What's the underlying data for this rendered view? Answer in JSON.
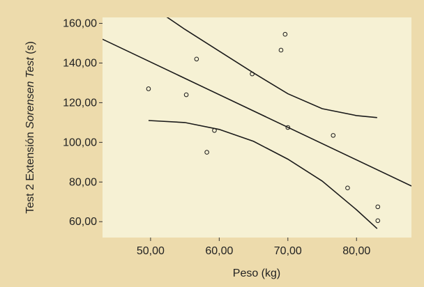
{
  "colors": {
    "page_background": "#eddbac",
    "plot_background": "#f6f1d4",
    "line": "#1a1a1a"
  },
  "chart_data": {
    "type": "scatter",
    "xlabel": "Peso (kg)",
    "ylabel_parts": [
      "Test 2 Extensión ",
      "Sorensen",
      " ",
      "Test",
      " (s)"
    ],
    "xlim": [
      43,
      88
    ],
    "ylim": [
      52,
      163
    ],
    "x_ticks": [
      50,
      60,
      70,
      80
    ],
    "x_tick_labels": [
      "50,00",
      "60,00",
      "70,00",
      "80,00"
    ],
    "y_ticks": [
      60,
      80,
      100,
      120,
      140,
      160
    ],
    "y_tick_labels": [
      "60,00",
      "80,00",
      "100,00",
      "120,00",
      "140,00",
      "160,00"
    ],
    "grid": false,
    "points": [
      {
        "x": 49.7,
        "y": 127
      },
      {
        "x": 55.2,
        "y": 124
      },
      {
        "x": 56.7,
        "y": 142
      },
      {
        "x": 58.2,
        "y": 95
      },
      {
        "x": 59.3,
        "y": 106
      },
      {
        "x": 64.8,
        "y": 134.5
      },
      {
        "x": 69.0,
        "y": 146.5
      },
      {
        "x": 69.6,
        "y": 154.5
      },
      {
        "x": 70.0,
        "y": 107.5
      },
      {
        "x": 76.6,
        "y": 103.5
      },
      {
        "x": 78.7,
        "y": 77
      },
      {
        "x": 83.1,
        "y": 67.5
      },
      {
        "x": 83.1,
        "y": 60.5
      }
    ],
    "regression_line": [
      {
        "x": 43,
        "y": 152
      },
      {
        "x": 88,
        "y": 78
      }
    ],
    "upper_band": [
      {
        "x": 51.6,
        "y": 165
      },
      {
        "x": 55,
        "y": 157
      },
      {
        "x": 60,
        "y": 146
      },
      {
        "x": 65,
        "y": 135
      },
      {
        "x": 70,
        "y": 124.5
      },
      {
        "x": 75,
        "y": 117
      },
      {
        "x": 80,
        "y": 113.5
      },
      {
        "x": 83,
        "y": 112.5
      }
    ],
    "lower_band": [
      {
        "x": 49.7,
        "y": 111
      },
      {
        "x": 55,
        "y": 110
      },
      {
        "x": 60,
        "y": 106.5
      },
      {
        "x": 65,
        "y": 100.5
      },
      {
        "x": 70,
        "y": 91.5
      },
      {
        "x": 75,
        "y": 80.5
      },
      {
        "x": 80,
        "y": 66
      },
      {
        "x": 83,
        "y": 56.5
      }
    ]
  }
}
